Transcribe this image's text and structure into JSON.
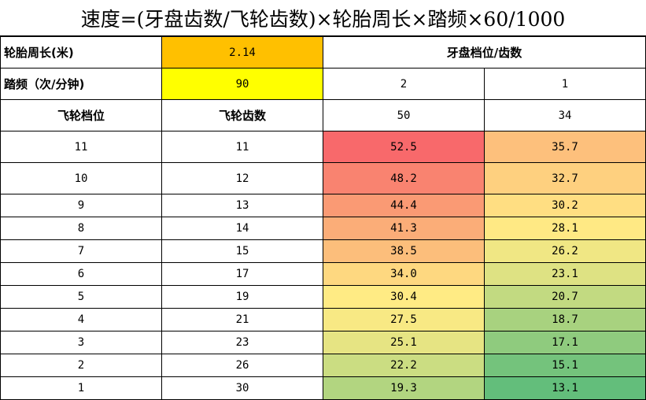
{
  "title": "速度=(牙盘齿数/飞轮齿数)×轮胎周长×踏频×60/1000",
  "params": {
    "tire_label": "轮胎周长(米)",
    "tire_value": "2.14",
    "tire_color": "#FFC000",
    "cadence_label": "踏频（次/分钟)",
    "cadence_value": "90",
    "cadence_color": "#FFFF00"
  },
  "chainring_header": "牙盘档位/齿数",
  "chainring_gears": [
    "2",
    "1"
  ],
  "columns": {
    "cog_position": "飞轮档位",
    "cog_teeth": "飞轮齿数",
    "chainring_teeth": [
      "50",
      "34"
    ]
  },
  "rows": [
    {
      "pos": "11",
      "teeth": "11",
      "s1": "52.5",
      "s2": "35.7",
      "c1": "#F8696B",
      "c2": "#FDC07C"
    },
    {
      "pos": "10",
      "teeth": "12",
      "s1": "48.2",
      "s2": "32.7",
      "c1": "#F98370",
      "c2": "#FED07F"
    },
    {
      "pos": "9",
      "teeth": "13",
      "s1": "44.4",
      "s2": "30.2",
      "c1": "#FA9A74",
      "c2": "#FFDE82"
    },
    {
      "pos": "8",
      "teeth": "14",
      "s1": "41.3",
      "s2": "28.1",
      "c1": "#FBAD78",
      "c2": "#FFE984"
    },
    {
      "pos": "7",
      "teeth": "15",
      "s1": "38.5",
      "s2": "26.2",
      "c1": "#FCBE7B",
      "c2": "#F0E784"
    },
    {
      "pos": "6",
      "teeth": "17",
      "s1": "34.0",
      "s2": "23.1",
      "c1": "#FED880",
      "c2": "#DEE283"
    },
    {
      "pos": "5",
      "teeth": "19",
      "s1": "30.4",
      "s2": "20.7",
      "c1": "#FFEB84",
      "c2": "#C2DA81"
    },
    {
      "pos": "4",
      "teeth": "21",
      "s1": "27.5",
      "s2": "18.7",
      "c1": "#F8E984",
      "c2": "#A8D27F"
    },
    {
      "pos": "3",
      "teeth": "23",
      "s1": "25.1",
      "s2": "17.1",
      "c1": "#E6E483",
      "c2": "#8FCB7E"
    },
    {
      "pos": "2",
      "teeth": "26",
      "s1": "22.2",
      "s2": "15.1",
      "c1": "#CBDD82",
      "c2": "#74C37C"
    },
    {
      "pos": "1",
      "teeth": "30",
      "s1": "19.3",
      "s2": "13.1",
      "c1": "#B2D580",
      "c2": "#63BE7B"
    }
  ]
}
